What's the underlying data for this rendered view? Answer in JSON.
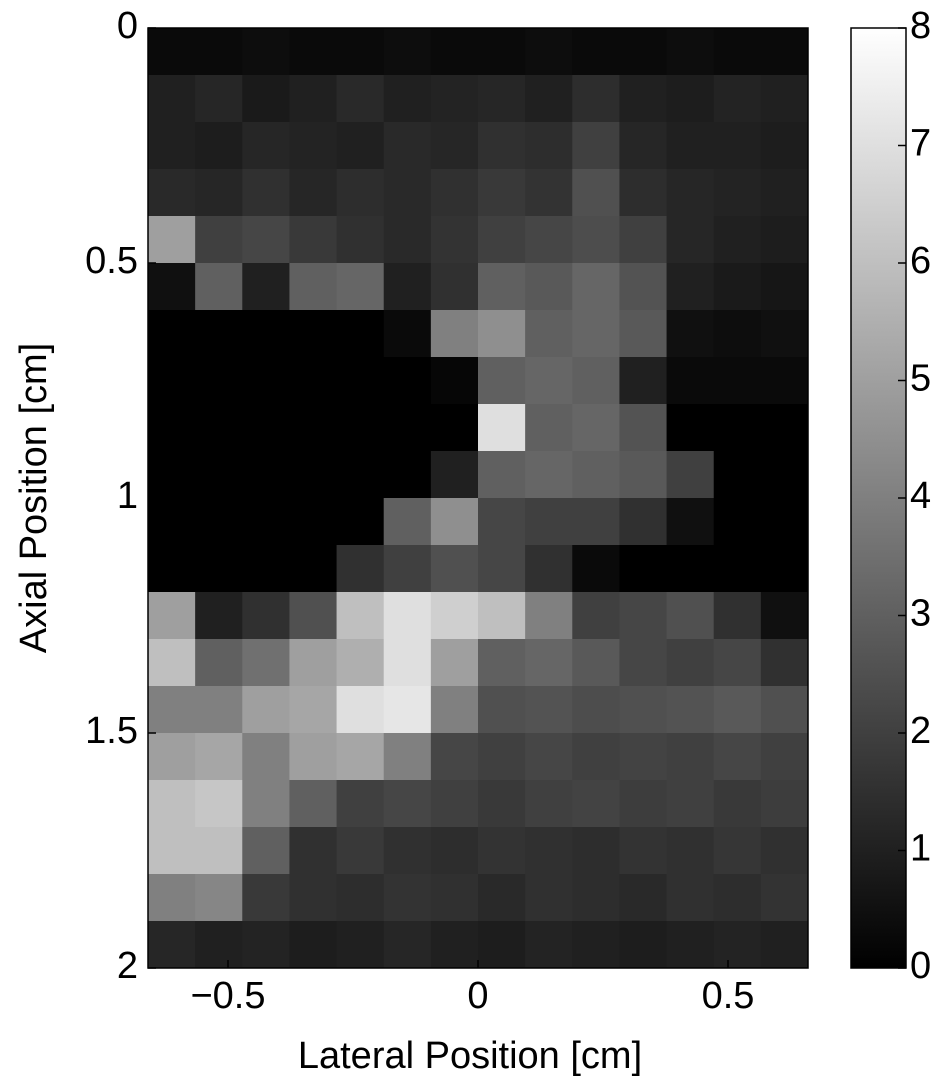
{
  "chart_data": {
    "type": "heatmap",
    "xlabel": "Lateral Position [cm]",
    "ylabel": "Axial Position [cm]",
    "xlim": [
      -0.66,
      0.66
    ],
    "ylim": [
      0,
      2
    ],
    "xticks": [
      {
        "value": -0.5,
        "label": "−0.5"
      },
      0,
      0.5
    ],
    "yticks": [
      0,
      0.5,
      1,
      1.5,
      2
    ],
    "clim": [
      0,
      8
    ],
    "cticks": [
      0,
      1,
      2,
      3,
      4,
      5,
      6,
      7,
      8
    ],
    "colormap": "gray",
    "values": [
      [
        0.3,
        0.3,
        0.4,
        0.3,
        0.3,
        0.4,
        0.3,
        0.3,
        0.4,
        0.3,
        0.3,
        0.4,
        0.3,
        0.3
      ],
      [
        1.0,
        1.2,
        0.8,
        1.0,
        1.3,
        1.0,
        1.1,
        1.2,
        1.0,
        1.4,
        1.0,
        0.9,
        1.1,
        1.0
      ],
      [
        1.0,
        0.9,
        1.2,
        1.1,
        1.0,
        1.3,
        1.2,
        1.5,
        1.4,
        2.0,
        1.2,
        1.0,
        1.0,
        0.9
      ],
      [
        1.3,
        1.2,
        1.5,
        1.2,
        1.4,
        1.3,
        1.5,
        1.8,
        1.6,
        2.5,
        1.4,
        1.2,
        1.1,
        1.0
      ],
      [
        5.0,
        2.0,
        2.2,
        1.8,
        1.5,
        1.3,
        1.6,
        2.0,
        2.2,
        2.4,
        2.0,
        1.2,
        1.0,
        0.9
      ],
      [
        0.5,
        3.0,
        1.0,
        3.0,
        3.2,
        1.0,
        1.5,
        3.0,
        2.8,
        3.2,
        2.6,
        1.0,
        0.8,
        0.7
      ],
      [
        0.0,
        0.0,
        0.0,
        0.0,
        0.0,
        0.3,
        4.0,
        4.5,
        3.0,
        3.2,
        2.8,
        0.5,
        0.4,
        0.5
      ],
      [
        0.0,
        0.0,
        0.0,
        0.0,
        0.0,
        0.0,
        0.2,
        3.0,
        3.2,
        3.0,
        1.0,
        0.3,
        0.3,
        0.3
      ],
      [
        0.0,
        0.0,
        0.0,
        0.0,
        0.0,
        0.0,
        0.0,
        7.0,
        3.0,
        3.2,
        2.6,
        0.0,
        0.0,
        0.0
      ],
      [
        0.0,
        0.0,
        0.0,
        0.0,
        0.0,
        0.0,
        1.0,
        3.0,
        3.2,
        3.0,
        2.8,
        2.0,
        0.0,
        0.0
      ],
      [
        0.0,
        0.0,
        0.0,
        0.0,
        0.0,
        3.0,
        4.5,
        2.2,
        2.0,
        2.0,
        1.5,
        0.5,
        0.0,
        0.0
      ],
      [
        0.0,
        0.0,
        0.0,
        0.0,
        1.5,
        2.0,
        2.5,
        2.2,
        1.5,
        0.3,
        0.0,
        0.0,
        0.0,
        0.0
      ],
      [
        5.0,
        1.0,
        1.5,
        2.5,
        6.0,
        7.0,
        6.5,
        6.0,
        4.0,
        2.0,
        2.2,
        2.5,
        1.5,
        0.5
      ],
      [
        6.0,
        3.0,
        3.5,
        5.0,
        5.5,
        7.0,
        5.0,
        3.0,
        3.2,
        2.8,
        2.2,
        2.0,
        2.2,
        1.5
      ],
      [
        4.0,
        4.0,
        5.0,
        5.2,
        7.0,
        7.2,
        4.0,
        2.5,
        2.6,
        2.4,
        2.5,
        2.6,
        2.8,
        2.5
      ],
      [
        5.0,
        5.2,
        4.0,
        5.0,
        5.2,
        4.0,
        2.2,
        2.0,
        2.2,
        2.0,
        2.1,
        2.0,
        2.2,
        2.0
      ],
      [
        6.0,
        6.2,
        4.0,
        3.0,
        2.0,
        2.2,
        2.0,
        1.8,
        2.0,
        2.1,
        1.9,
        2.0,
        1.8,
        1.9
      ],
      [
        6.0,
        6.0,
        3.0,
        1.5,
        1.8,
        1.5,
        1.4,
        1.6,
        1.5,
        1.4,
        1.6,
        1.5,
        1.7,
        1.5
      ],
      [
        4.0,
        4.2,
        1.8,
        1.5,
        1.4,
        1.6,
        1.5,
        1.3,
        1.5,
        1.4,
        1.3,
        1.5,
        1.4,
        1.6
      ],
      [
        1.2,
        1.0,
        1.1,
        0.9,
        1.0,
        1.2,
        1.0,
        0.9,
        1.1,
        1.0,
        0.9,
        1.0,
        1.1,
        1.0
      ]
    ]
  }
}
